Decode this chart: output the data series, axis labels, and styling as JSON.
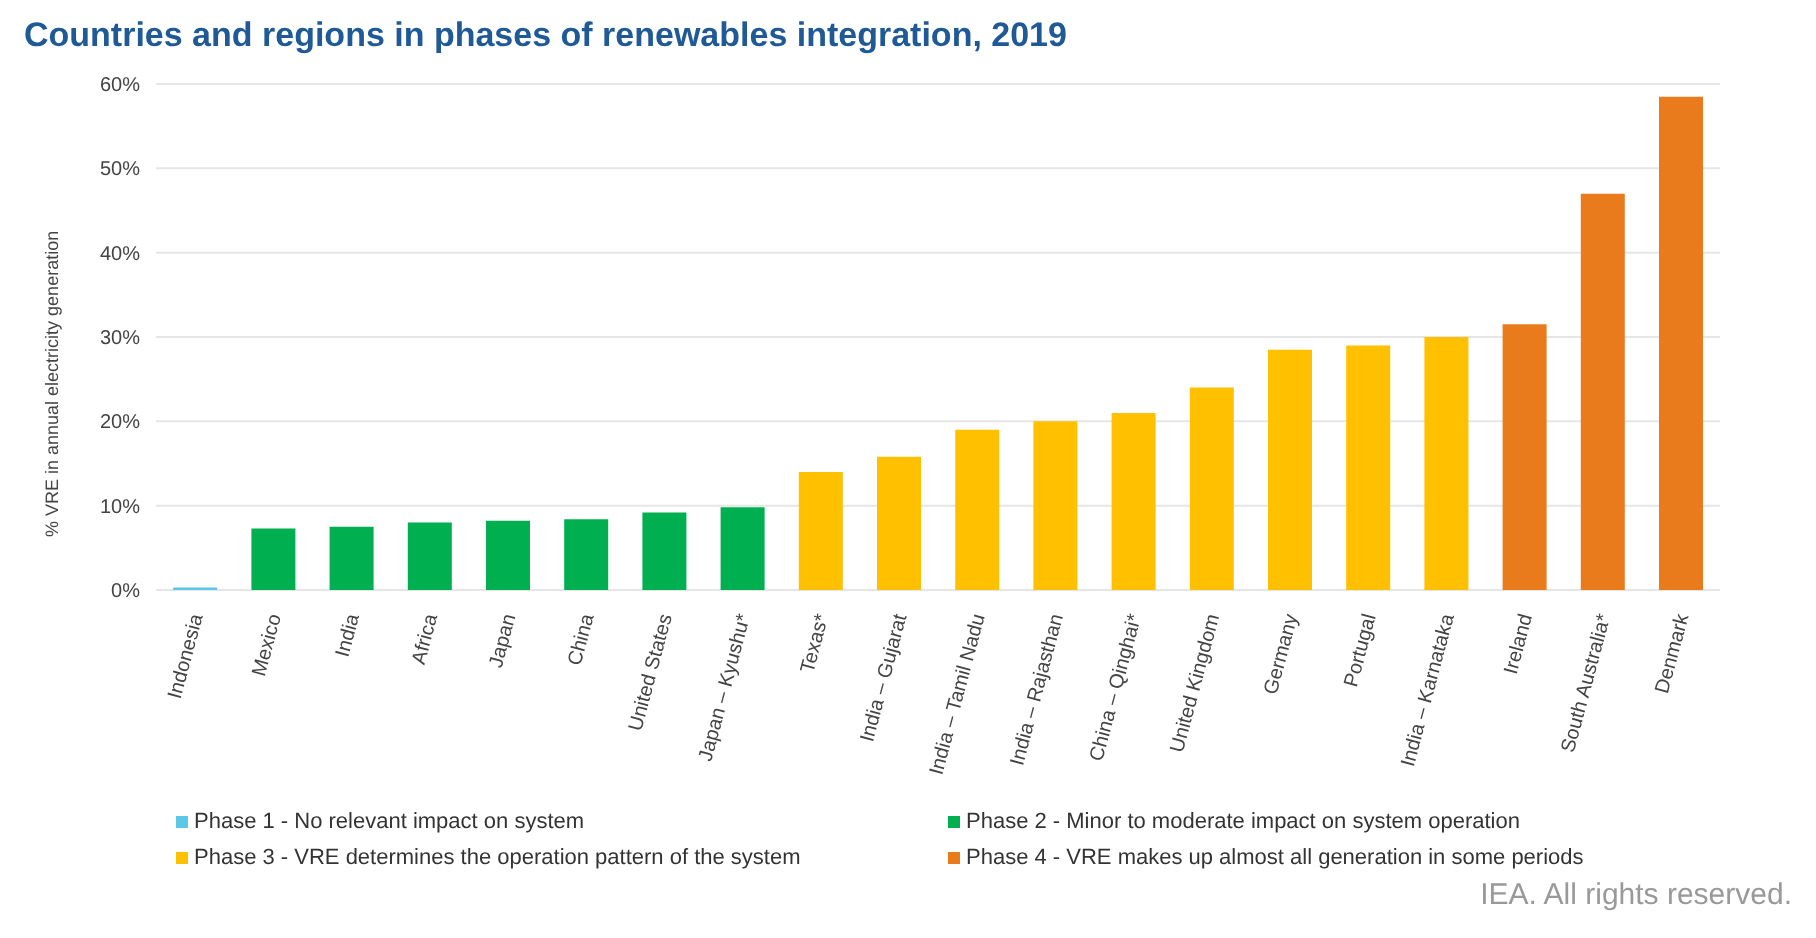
{
  "chart_data": {
    "type": "bar",
    "title": "Countries and regions in phases of renewables integration, 2019",
    "ylabel": "% VRE in annual electricity generation",
    "categories": [
      "Indonesia",
      "Mexico",
      "India",
      "Africa",
      "Japan",
      "China",
      "United States",
      "Japan – Kyushu*",
      "Texas*",
      "India – Gujarat",
      "India – Tamil Nadu",
      "India – Rajasthan",
      "China – Qinghai*",
      "United Kingdom",
      "Germany",
      "Portugal",
      "India – Karnataka",
      "Ireland",
      "South Australia*",
      "Denmark"
    ],
    "stacked": true,
    "series": [
      {
        "name": "Phase 1 - No relevant impact on system",
        "color": "#5bc8e8",
        "values": [
          0.3,
          null,
          null,
          null,
          null,
          null,
          null,
          null,
          null,
          null,
          null,
          null,
          null,
          null,
          null,
          null,
          null,
          null,
          null,
          null
        ]
      },
      {
        "name": "Phase 2 - Minor to moderate impact on system operation",
        "color": "#00b050",
        "values": [
          null,
          7.3,
          7.5,
          8,
          8.2,
          8.4,
          9.2,
          9.8,
          null,
          null,
          null,
          null,
          null,
          null,
          null,
          null,
          null,
          null,
          null,
          null
        ]
      },
      {
        "name": "Phase 3 - VRE determines the operation pattern of the system",
        "color": "#ffc000",
        "values": [
          null,
          null,
          null,
          null,
          null,
          null,
          null,
          null,
          14,
          15.8,
          19,
          20,
          21,
          24,
          28.5,
          29,
          30,
          null,
          null,
          null
        ]
      },
      {
        "name": "Phase 4 - VRE makes up almost all generation in some periods",
        "color": "#e97b1c",
        "values": [
          null,
          null,
          null,
          null,
          null,
          null,
          null,
          null,
          null,
          null,
          null,
          null,
          null,
          null,
          null,
          null,
          null,
          31.5,
          47,
          58.5
        ]
      }
    ],
    "ylim": [
      0,
      60
    ],
    "yticks": [
      {
        "value": 0,
        "label": "0%"
      },
      {
        "value": 10,
        "label": "10%"
      },
      {
        "value": 20,
        "label": "20%"
      },
      {
        "value": 30,
        "label": "30%"
      },
      {
        "value": 40,
        "label": "40%"
      },
      {
        "value": 50,
        "label": "50%"
      },
      {
        "value": 60,
        "label": "60%"
      }
    ],
    "grid": "y",
    "legend": "bottom",
    "annotations": [
      "IEA. All rights reserved."
    ]
  }
}
